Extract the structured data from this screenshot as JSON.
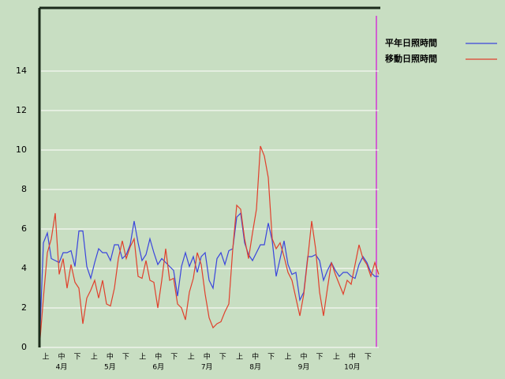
{
  "chart_data": {
    "type": "line",
    "dekad_labels": [
      "上",
      "中",
      "下",
      "上",
      "中",
      "下",
      "上",
      "中",
      "下",
      "上",
      "中",
      "下",
      "上",
      "中",
      "下",
      "上",
      "中",
      "下",
      "上",
      "中",
      "下"
    ],
    "month_labels": [
      "4月",
      "5月",
      "6月",
      "7月",
      "8月",
      "9月",
      "10月"
    ],
    "ylim": [
      0,
      17.2
    ],
    "yticks": [
      0,
      2,
      4,
      6,
      8,
      10,
      12,
      14
    ],
    "grid": true,
    "legend": "top-right",
    "series": [
      {
        "name": "平年日照時間",
        "color": "#3a45dc",
        "values": [
          0,
          5.3,
          5.8,
          4.5,
          4.4,
          4.3,
          4.8,
          4.8,
          4.9,
          4.1,
          5.9,
          5.9,
          4.1,
          3.5,
          4.3,
          5.0,
          4.8,
          4.8,
          4.4,
          5.2,
          5.2,
          4.5,
          4.7,
          5.2,
          6.4,
          5.3,
          4.4,
          4.7,
          5.5,
          4.8,
          4.2,
          4.5,
          4.3,
          4.1,
          3.9,
          2.6,
          4.1,
          4.8,
          4.1,
          4.6,
          3.8,
          4.6,
          4.8,
          3.4,
          3.0,
          4.5,
          4.8,
          4.2,
          4.9,
          5.0,
          6.6,
          6.8,
          5.3,
          4.7,
          4.4,
          4.8,
          5.2,
          5.2,
          6.3,
          5.4,
          3.6,
          4.5,
          5.4,
          4.2,
          3.7,
          3.8,
          2.4,
          2.8,
          4.6,
          4.6,
          4.7,
          4.4,
          3.4,
          3.9,
          4.3,
          3.9,
          3.6,
          3.8,
          3.8,
          3.6,
          3.5,
          4.2,
          4.6,
          4.3,
          3.8,
          3.6,
          3.6
        ]
      },
      {
        "name": "移動日照時間",
        "color": "#e0402c",
        "values": [
          0,
          2.5,
          4.8,
          5.5,
          6.8,
          3.7,
          4.5,
          3.0,
          4.2,
          3.3,
          3.0,
          1.2,
          2.5,
          2.9,
          3.4,
          2.5,
          3.4,
          2.2,
          2.1,
          3.0,
          4.5,
          5.4,
          4.5,
          5.1,
          5.5,
          3.6,
          3.5,
          4.4,
          3.4,
          3.3,
          2.0,
          3.4,
          5.0,
          3.4,
          3.5,
          2.2,
          2.0,
          1.4,
          2.8,
          3.5,
          4.8,
          4.2,
          2.7,
          1.5,
          1.0,
          1.2,
          1.3,
          1.8,
          2.2,
          5.0,
          7.2,
          7.0,
          5.5,
          4.5,
          5.8,
          7.0,
          10.2,
          9.7,
          8.6,
          5.5,
          5.0,
          5.3,
          4.6,
          3.8,
          3.4,
          2.5,
          1.6,
          2.7,
          4.5,
          6.4,
          5.0,
          2.8,
          1.6,
          3.0,
          4.3,
          3.7,
          3.2,
          2.7,
          3.4,
          3.2,
          4.2,
          5.2,
          4.5,
          4.2,
          3.6,
          4.3,
          3.7
        ]
      }
    ]
  }
}
